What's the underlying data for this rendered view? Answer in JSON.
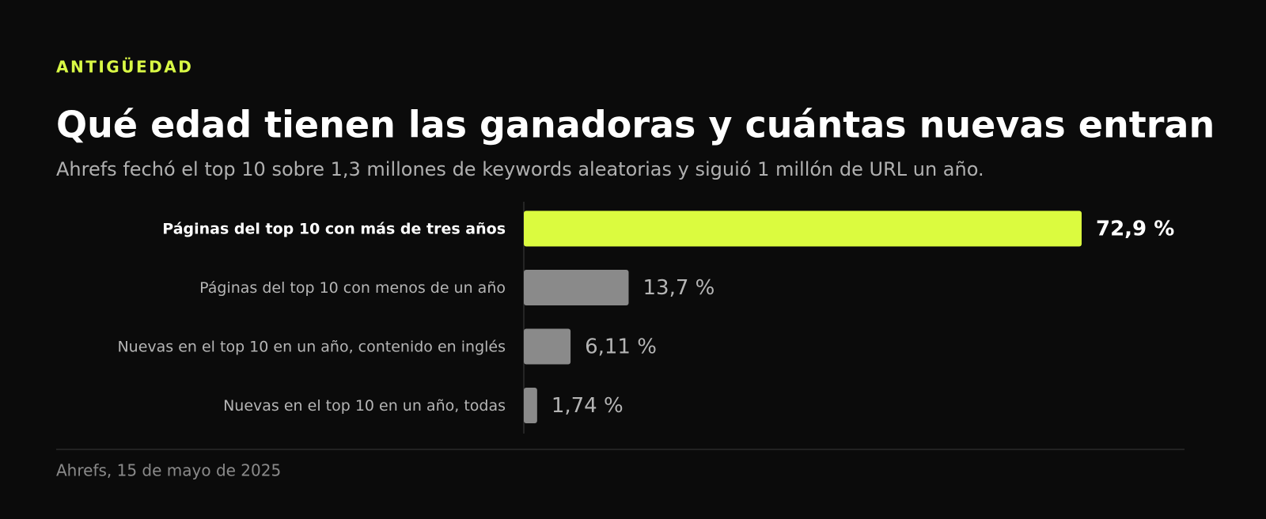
{
  "chart_data": {
    "type": "bar",
    "orientation": "horizontal",
    "kicker": "ANTIGÜEDAD",
    "title": "Qué edad tienen las ganadoras y cuántas nuevas entran",
    "subtitle": "Ahrefs fechó el top 10 sobre 1,3 millones de keywords aleatorias y siguió 1 millón de URL un año.",
    "categories": [
      "Páginas del top 10 con más de tres años",
      "Páginas del top 10 con menos de un año",
      "Nuevas en el top 10 en un año, contenido en inglés",
      "Nuevas en el top 10 en un año, todas"
    ],
    "values": [
      72.9,
      13.7,
      6.11,
      1.74
    ],
    "value_labels": [
      "72,9 %",
      "13,7 %",
      "6,11 %",
      "1,74 %"
    ],
    "colors": [
      "#dbfb3f",
      "#8a8a8a",
      "#8a8a8a",
      "#8a8a8a"
    ],
    "source": "Ahrefs, 15 de mayo de 2025"
  }
}
